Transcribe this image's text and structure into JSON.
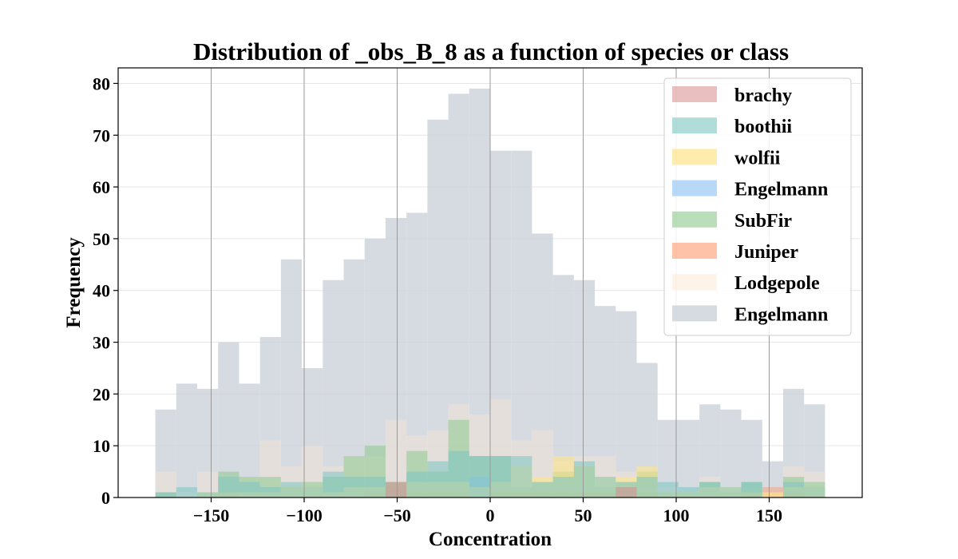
{
  "chart_data": {
    "type": "histogram",
    "title": "Distribution of _obs_B_8 as a function of species or class",
    "xlabel": "Concentration",
    "ylabel": "Frequency",
    "xlim": [
      -200,
      200
    ],
    "ylim": [
      0,
      83
    ],
    "xticks": [
      -150,
      -100,
      -50,
      0,
      50,
      100,
      150
    ],
    "xtick_labels": [
      "−150",
      "−100",
      "−50",
      "0",
      "50",
      "100",
      "150"
    ],
    "yticks": [
      0,
      10,
      20,
      30,
      40,
      50,
      60,
      70,
      80
    ],
    "grid": true,
    "legend_position": "upper right",
    "bin_start": -180,
    "bin_width": 11.25,
    "series": [
      {
        "name": "Engelmann",
        "color": "#ccd2da",
        "alpha": 0.8,
        "values": [
          17,
          22,
          21,
          30,
          22,
          31,
          46,
          25,
          42,
          46,
          50,
          54,
          55,
          73,
          78,
          79,
          67,
          67,
          51,
          43,
          42,
          37,
          36,
          26,
          15,
          15,
          18,
          17,
          15,
          7,
          21,
          18
        ]
      },
      {
        "name": "Lodgepole",
        "color": "#fde7d4",
        "alpha": 0.4,
        "values": [
          5,
          1,
          5,
          4,
          4,
          11,
          6,
          10,
          6,
          8,
          8,
          15,
          12,
          13,
          18,
          16,
          19,
          11,
          13,
          7,
          8,
          8,
          5,
          2,
          2,
          1,
          4,
          2,
          2,
          1,
          6,
          5
        ]
      },
      {
        "name": "Juniper",
        "color": "#fc9a6e",
        "alpha": 0.45,
        "values": [
          0,
          0,
          0,
          1,
          0,
          0,
          0,
          0,
          0,
          0,
          1,
          2,
          1,
          1,
          1,
          0,
          1,
          1,
          1,
          1,
          1,
          1,
          2,
          1,
          0,
          0,
          0,
          0,
          1,
          2,
          1,
          0
        ]
      },
      {
        "name": "SubFir",
        "color": "#8cc88c",
        "alpha": 0.55,
        "values": [
          1,
          0,
          1,
          5,
          4,
          4,
          2,
          3,
          4,
          8,
          10,
          3,
          9,
          5,
          15,
          8,
          8,
          2,
          3,
          5,
          6,
          2,
          3,
          5,
          1,
          1,
          3,
          1,
          3,
          0,
          4,
          3
        ]
      },
      {
        "name": "Engelmann",
        "color": "#92c3f5",
        "alpha": 0.6,
        "values": [
          0,
          0,
          0,
          0,
          0,
          0,
          0,
          0,
          0,
          0,
          0,
          0,
          0,
          0,
          0,
          4,
          0,
          0,
          0,
          0,
          0,
          0,
          0,
          0,
          0,
          0,
          0,
          0,
          0,
          0,
          0,
          0
        ]
      },
      {
        "name": "wolfii",
        "color": "#fde48a",
        "alpha": 0.6,
        "values": [
          0,
          0,
          1,
          1,
          1,
          1,
          2,
          2,
          1,
          2,
          2,
          3,
          3,
          3,
          3,
          2,
          3,
          6,
          4,
          8,
          6,
          4,
          4,
          6,
          1,
          1,
          2,
          2,
          1,
          1,
          2,
          2
        ]
      },
      {
        "name": "boothii",
        "color": "#7cc4c2",
        "alpha": 0.55,
        "values": [
          1,
          2,
          1,
          4,
          3,
          2,
          3,
          2,
          5,
          4,
          4,
          3,
          5,
          7,
          9,
          8,
          8,
          8,
          3,
          4,
          7,
          4,
          3,
          4,
          3,
          2,
          3,
          2,
          3,
          0,
          3,
          2
        ]
      },
      {
        "name": "brachy",
        "color": "#d98a8c",
        "alpha": 0.5,
        "values": [
          0,
          0,
          0,
          0,
          0,
          0,
          0,
          0,
          0,
          0,
          0,
          3,
          0,
          0,
          0,
          0,
          0,
          0,
          0,
          0,
          0,
          0,
          2,
          0,
          0,
          0,
          0,
          0,
          0,
          0,
          0,
          0
        ]
      }
    ],
    "legend_order": [
      {
        "name": "brachy",
        "color": "#d98a8c",
        "alpha": 0.55
      },
      {
        "name": "boothii",
        "color": "#7cc4c2",
        "alpha": 0.6
      },
      {
        "name": "wolfii",
        "color": "#fde48a",
        "alpha": 0.7
      },
      {
        "name": "Engelmann",
        "color": "#92c3f5",
        "alpha": 0.65
      },
      {
        "name": "SubFir",
        "color": "#8cc88c",
        "alpha": 0.6
      },
      {
        "name": "Juniper",
        "color": "#fc9a6e",
        "alpha": 0.6
      },
      {
        "name": "Lodgepole",
        "color": "#fde7d4",
        "alpha": 0.5
      },
      {
        "name": "Engelmann",
        "color": "#ccd2da",
        "alpha": 0.8
      }
    ]
  }
}
